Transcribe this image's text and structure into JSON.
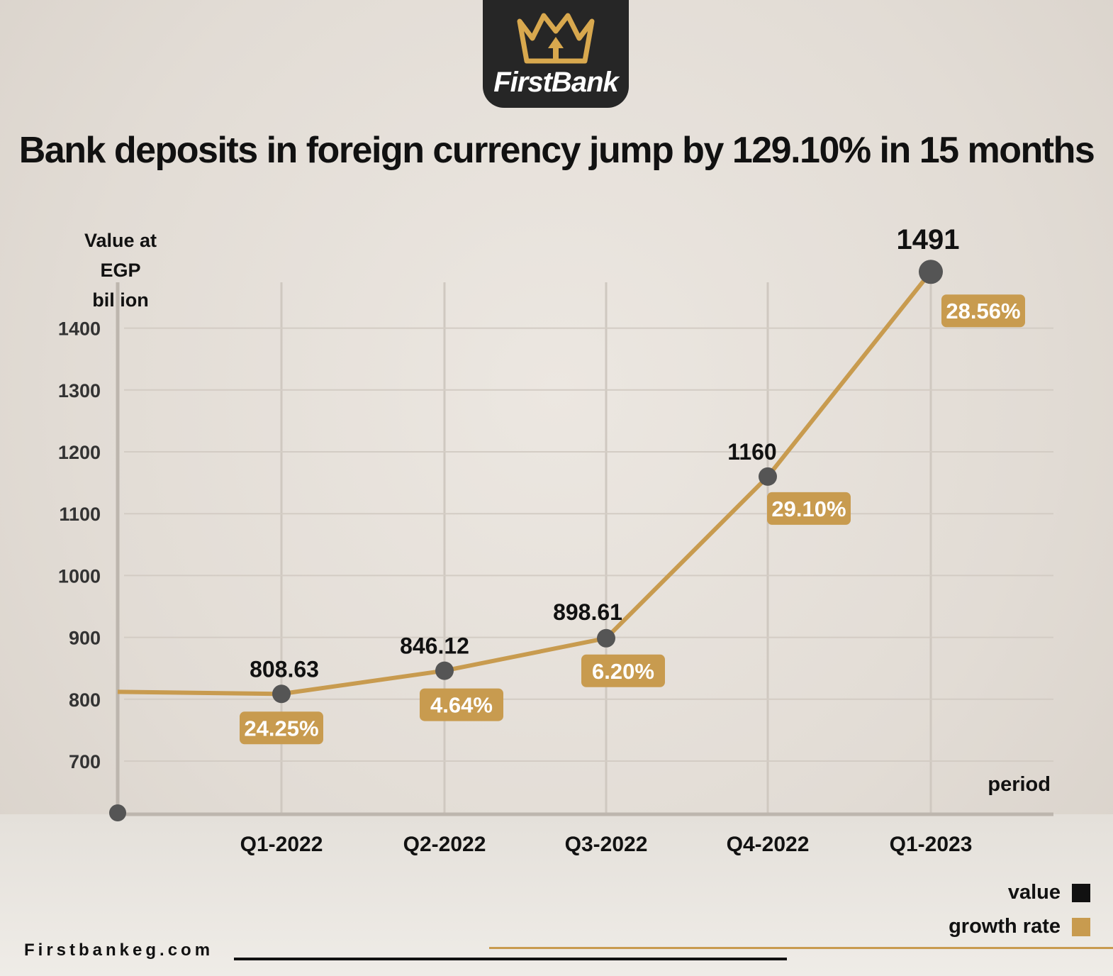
{
  "brand": {
    "name": "FirstBank",
    "icon": "crown-logo"
  },
  "colors": {
    "line": "#c89b4f",
    "marker": "#555555",
    "label_bg": "#c89b4f",
    "value": "#111111"
  },
  "chart_data": {
    "type": "line",
    "title": "Bank deposits in foreign currency jump by 129.10% in 15 months",
    "ylabel_line1": "Value at",
    "ylabel_line2": "EGP billion",
    "xlabel": "period",
    "categories": [
      "Q1-2022",
      "Q2-2022",
      "Q3-2022",
      "Q4-2022",
      "Q1-2023"
    ],
    "series": [
      {
        "name": "value",
        "values": [
          808.63,
          846.12,
          898.61,
          1160,
          1491
        ]
      },
      {
        "name": "growth rate",
        "values": [
          "24.25%",
          "4.64%",
          "6.20%",
          "29.10%",
          "28.56%"
        ]
      }
    ],
    "start_level": 812,
    "yticks": [
      700,
      800,
      900,
      1000,
      1100,
      1200,
      1300,
      1400
    ],
    "ylim": [
      610,
      1480
    ],
    "grid": true,
    "legend_position": "bottom-right"
  },
  "footer": {
    "website": "Firstbankeg.com"
  }
}
